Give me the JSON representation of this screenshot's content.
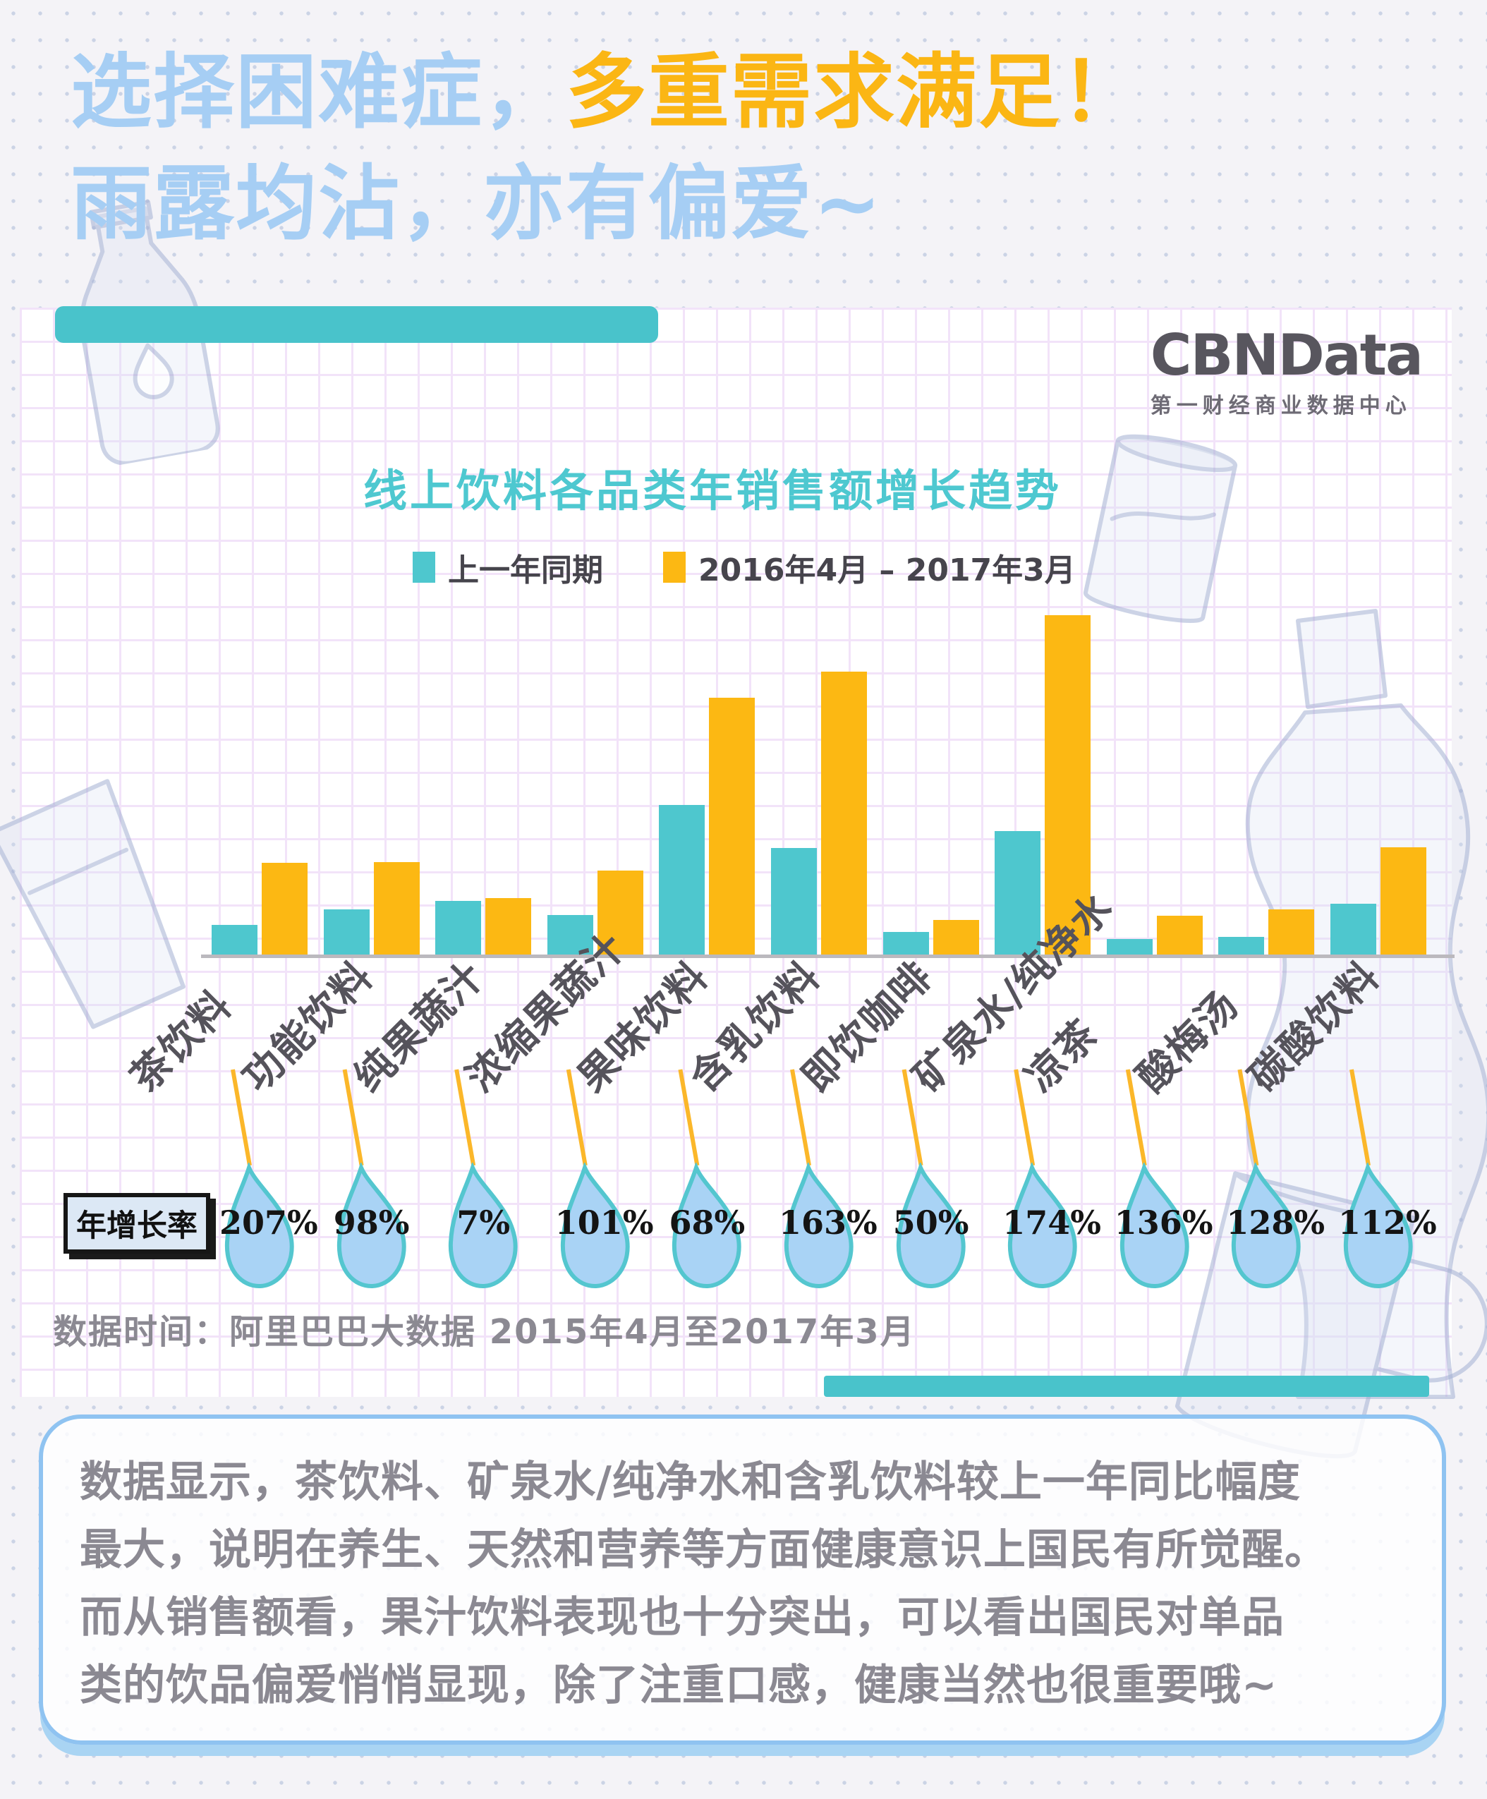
{
  "header": {
    "title_line1_blue": "选择困难症，",
    "title_line1_yellow": "多重需求满足！",
    "title_line2": "雨露均沾，亦有偏爱~"
  },
  "logo": {
    "name": "CBNData",
    "subtitle": "第一财经商业数据中心"
  },
  "chart": {
    "title": "线上饮料各品类年销售额增长趋势",
    "legend": [
      {
        "label": "上一年同期",
        "color": "#4EC7CE"
      },
      {
        "label": "2016年4月 – 2017年3月",
        "color": "#FCB813"
      }
    ],
    "growth_row_label": "年增长率"
  },
  "chart_data": {
    "type": "bar",
    "title": "线上饮料各品类年销售额增长趋势",
    "xlabel": "",
    "ylabel": "",
    "grid": true,
    "legend_position": "top",
    "categories": [
      "茶饮料",
      "功能饮料",
      "纯果蔬汁",
      "浓缩果蔬汁",
      "果味饮料",
      "含乳饮料",
      "即饮咖啡",
      "矿泉水/纯净水",
      "凉茶",
      "酸梅汤",
      "碳酸饮料"
    ],
    "series": [
      {
        "name": "上一年同期",
        "color": "#4EC7CE",
        "values": [
          44,
          66,
          78,
          58,
          214,
          153,
          34,
          177,
          24,
          27,
          74
        ]
      },
      {
        "name": "2016年4月 – 2017年3月",
        "color": "#FCB813",
        "values": [
          132,
          133,
          82,
          121,
          366,
          403,
          51,
          483,
          57,
          66,
          154
        ]
      }
    ],
    "values_unit": "relative sales index (proportional bar heights, no numeric axis shown)",
    "growth_rates": [
      "207%",
      "98%",
      "7%",
      "101%",
      "68%",
      "163%",
      "50%",
      "174%",
      "136%",
      "128%",
      "112%"
    ]
  },
  "source_note": "数据时间：阿里巴巴大数据  2015年4月至2017年3月",
  "footer": {
    "lines": [
      "数据显示，茶饮料、矿泉水/纯净水和含乳饮料较上一年同比幅度",
      "最大，说明在养生、天然和营养等方面健康意识上国民有所觉醒。",
      "而从销售额看，果汁饮料表现也十分突出，可以看出国民对单品",
      "类的饮品偏爱悄悄显现，除了注重口感，健康当然也很重要哦~"
    ]
  },
  "icons": {
    "decorations": [
      "bottle-sketch",
      "cola-can-sketch",
      "glass-sketch",
      "curvy-bottle-sketch",
      "mug-sketch",
      "droplet-icon"
    ]
  },
  "colors": {
    "title_blue": "#A6CEF4",
    "title_yellow": "#FBB614",
    "teal": "#4EC7CE",
    "yellow": "#FCB813",
    "divider_teal": "#49C3CB",
    "droplet_fill": "#A9D3F5",
    "droplet_stroke": "#54C6CF",
    "leader_line": "#FBB72A",
    "text_gray": "#8B8992",
    "footer_border": "#8FC3F1"
  }
}
